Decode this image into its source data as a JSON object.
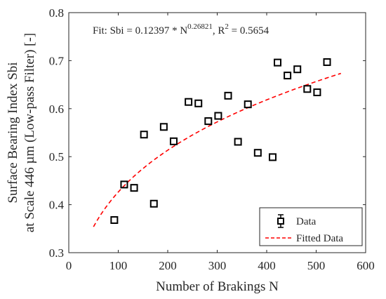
{
  "chart_data": {
    "type": "scatter",
    "xlabel": "Number of Brakings N",
    "ylabel_line1": "Surface Bearing Index Sbi",
    "ylabel_line2": "at Scale 446 µm (Low-pass Filter) [-]",
    "xlim": [
      0,
      600
    ],
    "ylim": [
      0.3,
      0.8
    ],
    "xticks": [
      0,
      100,
      200,
      300,
      400,
      500,
      600
    ],
    "yticks": [
      0.3,
      0.4,
      0.5,
      0.6,
      0.7,
      0.8
    ],
    "xtick_labels": [
      "0",
      "100",
      "200",
      "300",
      "400",
      "500",
      "600"
    ],
    "ytick_labels": [
      "0.3",
      "0.4",
      "0.5",
      "0.6",
      "0.7",
      "0.8"
    ],
    "annotation": {
      "prefix": "Fit: Sbi = 0.12397 * N",
      "exponent": "0.26821",
      "suffix": ", R",
      "r2_exp": "2",
      "r2_value": " = 0.5654"
    },
    "legend": {
      "placement": "bottom-right",
      "entries": [
        "Data",
        "Fitted Data"
      ]
    },
    "series": [
      {
        "name": "Data",
        "marker": "square",
        "x": [
          92,
          112,
          132,
          152,
          172,
          192,
          212,
          242,
          262,
          282,
          302,
          322,
          342,
          362,
          382,
          412,
          422,
          442,
          462,
          482,
          502,
          522
        ],
        "y": [
          0.368,
          0.442,
          0.435,
          0.546,
          0.402,
          0.562,
          0.532,
          0.614,
          0.611,
          0.574,
          0.585,
          0.627,
          0.531,
          0.609,
          0.508,
          0.499,
          0.696,
          0.669,
          0.682,
          0.641,
          0.634,
          0.697
        ]
      },
      {
        "name": "Fitted Data",
        "style": "dashed",
        "color": "#ff0000",
        "fit": {
          "a": 0.12397,
          "b": 0.26821
        },
        "x_range": [
          50,
          550
        ]
      }
    ],
    "grid": false
  }
}
